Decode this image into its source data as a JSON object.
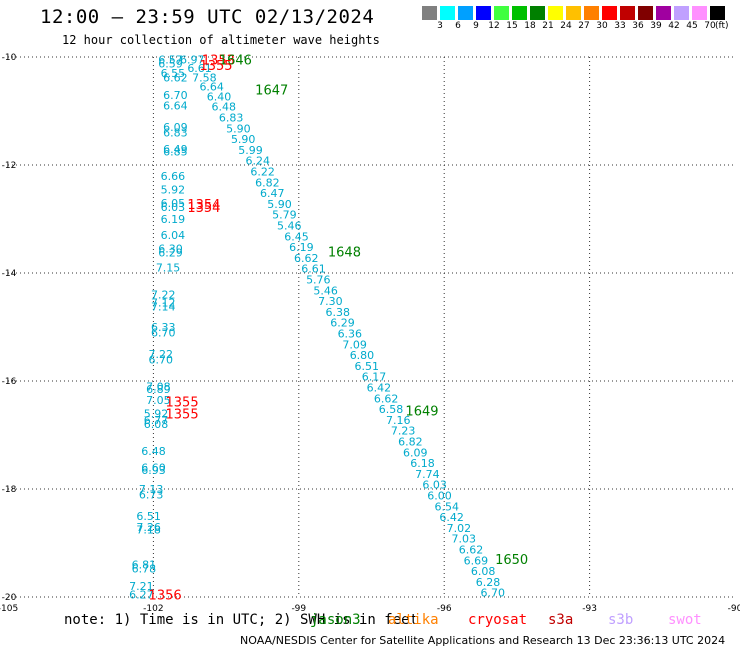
{
  "title": "12:00 – 23:59 UTC 02/13/2024",
  "subtitle": "12 hour collection of altimeter wave heights",
  "note": "note:  1) Time is in UTC; 2) SWH is in feet",
  "credit": "NOAA/NESDIS Center for Satellite Applications and Research   13 Dec 23:36:13 UTC 2024",
  "colorbar": {
    "colors": [
      "#808080",
      "#00ffff",
      "#00a0ff",
      "#0000ff",
      "#40ff40",
      "#00c000",
      "#008000",
      "#ffff00",
      "#ffc000",
      "#ff8000",
      "#ff0000",
      "#c00000",
      "#800000",
      "#a000a0",
      "#c0a0ff",
      "#ff90ff",
      "#000000"
    ],
    "labels": [
      "3",
      "6",
      "9",
      "12",
      "15",
      "18",
      "21",
      "24",
      "27",
      "30",
      "33",
      "36",
      "39",
      "42",
      "45",
      "70"
    ],
    "unit": "(ft)"
  },
  "missions": [
    {
      "name": "jason3",
      "color": "#008000"
    },
    {
      "name": "altika",
      "color": "#ff8000"
    },
    {
      "name": "cryosat",
      "color": "#ff0000"
    },
    {
      "name": "s3a",
      "color": "#c00000"
    },
    {
      "name": "s3b",
      "color": "#c0a0ff"
    },
    {
      "name": "swot",
      "color": "#ff90ff"
    }
  ],
  "chart_data": {
    "type": "scatter",
    "title": "12:00 – 23:59 UTC 02/13/2024",
    "xlim": [
      -105,
      -90
    ],
    "ylim": [
      -20,
      -10
    ],
    "x_ticks": [
      "-105",
      "-102",
      "-99",
      "-96",
      "-93",
      "-90"
    ],
    "y_ticks": [
      "-10",
      "-12",
      "-14",
      "-16",
      "-18",
      "-20"
    ],
    "grid": true,
    "value_color": "#00aacc",
    "tracks": [
      {
        "name": "track-left",
        "points": [
          [
            -101.9,
            -10.05,
            "6.57"
          ],
          [
            -101.9,
            -10.12,
            "6.59"
          ],
          [
            -101.85,
            -10.3,
            "6.55"
          ],
          [
            -101.8,
            -10.38,
            "6.62"
          ],
          [
            -101.8,
            -10.7,
            "6.70"
          ],
          [
            -101.8,
            -10.9,
            "6.64"
          ],
          [
            -101.8,
            -11.3,
            "6.09"
          ],
          [
            -101.8,
            -11.4,
            "6.83"
          ],
          [
            -101.8,
            -11.7,
            "6.49"
          ],
          [
            -101.8,
            -11.75,
            "6.85"
          ],
          [
            -101.85,
            -12.2,
            "6.66"
          ],
          [
            -101.85,
            -12.45,
            "5.92"
          ],
          [
            -101.85,
            -12.7,
            "6.05"
          ],
          [
            -101.85,
            -12.78,
            "6.03"
          ],
          [
            -101.85,
            -13.0,
            "6.19"
          ],
          [
            -101.85,
            -13.3,
            "6.04"
          ],
          [
            -101.9,
            -13.55,
            "6.30"
          ],
          [
            -101.9,
            -13.62,
            "6.29"
          ],
          [
            -101.95,
            -13.9,
            "7.15"
          ],
          [
            -102.05,
            -14.4,
            "7.22"
          ],
          [
            -102.05,
            -14.55,
            "7.12"
          ],
          [
            -102.05,
            -14.62,
            "7.14"
          ],
          [
            -102.05,
            -15.0,
            "6.33"
          ],
          [
            -102.05,
            -15.1,
            "6.70"
          ],
          [
            -102.1,
            -15.5,
            "7.22"
          ],
          [
            -102.1,
            -15.6,
            "6.70"
          ],
          [
            -102.15,
            -16.1,
            "7.08"
          ],
          [
            -102.15,
            -16.15,
            "6.89"
          ],
          [
            -102.15,
            -16.35,
            "7.05"
          ],
          [
            -102.2,
            -16.6,
            "5.92"
          ],
          [
            -102.2,
            -16.72,
            "6.77"
          ],
          [
            -102.2,
            -16.8,
            "6.08"
          ],
          [
            -102.25,
            -17.3,
            "6.48"
          ],
          [
            -102.25,
            -17.6,
            "6.60"
          ],
          [
            -102.25,
            -17.65,
            "6.93"
          ],
          [
            -102.3,
            -18.0,
            "7.13"
          ],
          [
            -102.3,
            -18.1,
            "6.73"
          ],
          [
            -102.35,
            -18.5,
            "6.51"
          ],
          [
            -102.35,
            -18.7,
            "7.26"
          ],
          [
            -102.35,
            -18.75,
            "7.18"
          ],
          [
            -102.45,
            -19.4,
            "6.81"
          ],
          [
            -102.45,
            -19.47,
            "6.78"
          ],
          [
            -102.5,
            -19.8,
            "7.21"
          ],
          [
            -102.5,
            -19.95,
            "6.27"
          ]
        ]
      },
      {
        "name": "track-right",
        "points": [
          [
            -101.45,
            -10.05,
            "6.97"
          ],
          [
            -101.3,
            -10.2,
            "6.61"
          ],
          [
            -101.2,
            -10.38,
            "7.58"
          ],
          [
            -101.05,
            -10.55,
            "6.64"
          ],
          [
            -100.9,
            -10.73,
            "6.40"
          ],
          [
            -100.8,
            -10.92,
            "6.48"
          ],
          [
            -100.65,
            -11.12,
            "6.83"
          ],
          [
            -100.5,
            -11.32,
            "5.90"
          ],
          [
            -100.4,
            -11.52,
            "5.90"
          ],
          [
            -100.25,
            -11.72,
            "5.99"
          ],
          [
            -100.1,
            -11.92,
            "6.24"
          ],
          [
            -100.0,
            -12.12,
            "6.22"
          ],
          [
            -99.9,
            -12.32,
            "6.82"
          ],
          [
            -99.8,
            -12.52,
            "6.47"
          ],
          [
            -99.65,
            -12.72,
            "5.90"
          ],
          [
            -99.55,
            -12.92,
            "5.79"
          ],
          [
            -99.45,
            -13.12,
            "5.46"
          ],
          [
            -99.3,
            -13.32,
            "6.45"
          ],
          [
            -99.2,
            -13.52,
            "6.19"
          ],
          [
            -99.1,
            -13.72,
            "6.62"
          ],
          [
            -98.95,
            -13.92,
            "6.61"
          ],
          [
            -98.85,
            -14.12,
            "5.76"
          ],
          [
            -98.7,
            -14.32,
            "5.46"
          ],
          [
            -98.6,
            -14.52,
            "7.30"
          ],
          [
            -98.45,
            -14.72,
            "6.38"
          ],
          [
            -98.35,
            -14.92,
            "6.29"
          ],
          [
            -98.2,
            -15.12,
            "6.36"
          ],
          [
            -98.1,
            -15.32,
            "7.09"
          ],
          [
            -97.95,
            -15.52,
            "6.80"
          ],
          [
            -97.85,
            -15.72,
            "6.51"
          ],
          [
            -97.7,
            -15.92,
            "6.17"
          ],
          [
            -97.6,
            -16.12,
            "6.42"
          ],
          [
            -97.45,
            -16.32,
            "6.62"
          ],
          [
            -97.35,
            -16.52,
            "6.58"
          ],
          [
            -97.2,
            -16.72,
            "7.16"
          ],
          [
            -97.1,
            -16.92,
            "7.23"
          ],
          [
            -96.95,
            -17.12,
            "6.82"
          ],
          [
            -96.85,
            -17.32,
            "6.09"
          ],
          [
            -96.7,
            -17.52,
            "6.18"
          ],
          [
            -96.6,
            -17.72,
            "7.74"
          ],
          [
            -96.45,
            -17.92,
            "6.03"
          ],
          [
            -96.35,
            -18.12,
            "6.00"
          ],
          [
            -96.2,
            -18.32,
            "6.54"
          ],
          [
            -96.1,
            -18.52,
            "6.42"
          ],
          [
            -95.95,
            -18.72,
            "7.02"
          ],
          [
            -95.85,
            -18.92,
            "7.03"
          ],
          [
            -95.7,
            -19.12,
            "6.62"
          ],
          [
            -95.6,
            -19.32,
            "6.69"
          ],
          [
            -95.45,
            -19.52,
            "6.08"
          ],
          [
            -95.35,
            -19.72,
            "6.28"
          ],
          [
            -95.25,
            -19.92,
            "6.70"
          ]
        ]
      }
    ],
    "pass_labels": [
      {
        "text": "1353",
        "x": -101.0,
        "y": -10.05,
        "color": "#ff0000"
      },
      {
        "text": "1646",
        "x": -100.65,
        "y": -10.05,
        "color": "#008000"
      },
      {
        "text": "1355",
        "x": -101.05,
        "y": -10.15,
        "color": "#ff0000"
      },
      {
        "text": "1647",
        "x": -99.9,
        "y": -10.6,
        "color": "#008000"
      },
      {
        "text": "1354",
        "x": -101.3,
        "y": -12.72,
        "color": "#ff0000"
      },
      {
        "text": "1354",
        "x": -101.3,
        "y": -12.78,
        "color": "#ff0000"
      },
      {
        "text": "1648",
        "x": -98.4,
        "y": -13.6,
        "color": "#008000"
      },
      {
        "text": "1355",
        "x": -101.75,
        "y": -16.38,
        "color": "#ff0000"
      },
      {
        "text": "1355",
        "x": -101.75,
        "y": -16.6,
        "color": "#ff0000"
      },
      {
        "text": "1649",
        "x": -96.8,
        "y": -16.55,
        "color": "#008000"
      },
      {
        "text": "1650",
        "x": -94.95,
        "y": -19.3,
        "color": "#008000"
      },
      {
        "text": "1356",
        "x": -102.1,
        "y": -19.95,
        "color": "#ff0000"
      }
    ]
  }
}
